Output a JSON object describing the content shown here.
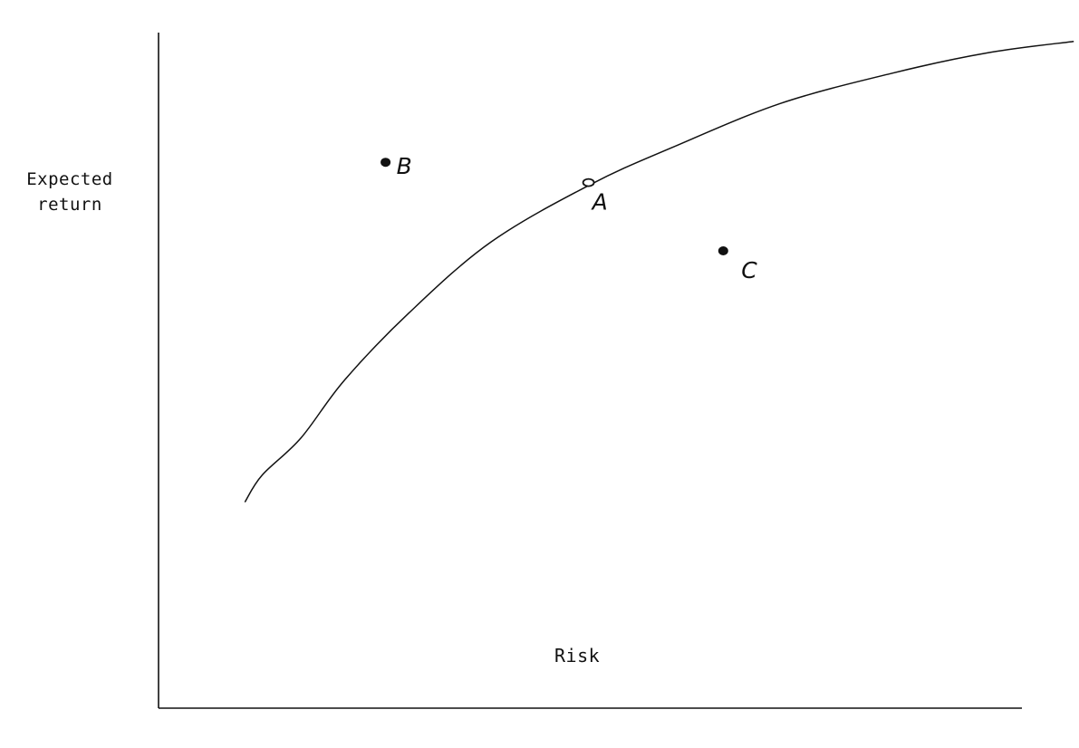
{
  "chart_data": {
    "type": "line",
    "title": "",
    "xlabel": "Risk",
    "ylabel": [
      "Expected",
      "return"
    ],
    "xlim": [
      0,
      100
    ],
    "ylim": [
      0,
      100
    ],
    "grid": false,
    "x_ticks": false,
    "y_ticks": false,
    "series": [
      {
        "values_xy": [
          [
            10.0,
            30.5
          ],
          [
            12.0,
            34.5
          ],
          [
            16.5,
            40.0
          ],
          [
            21.5,
            48.5
          ],
          [
            29.0,
            58.5
          ],
          [
            38.5,
            69.0
          ],
          [
            50.0,
            77.5
          ],
          [
            59.5,
            83.0
          ],
          [
            72.0,
            89.5
          ],
          [
            85.0,
            94.0
          ],
          [
            96.0,
            97.0
          ],
          [
            106.0,
            98.7
          ]
        ]
      }
    ],
    "points": [
      {
        "label": "A",
        "x": 49.8,
        "y": 77.8,
        "marker": "open"
      },
      {
        "label": "B",
        "x": 26.3,
        "y": 80.8,
        "marker": "filled"
      },
      {
        "label": "C",
        "x": 65.4,
        "y": 67.7,
        "marker": "filled"
      }
    ]
  }
}
